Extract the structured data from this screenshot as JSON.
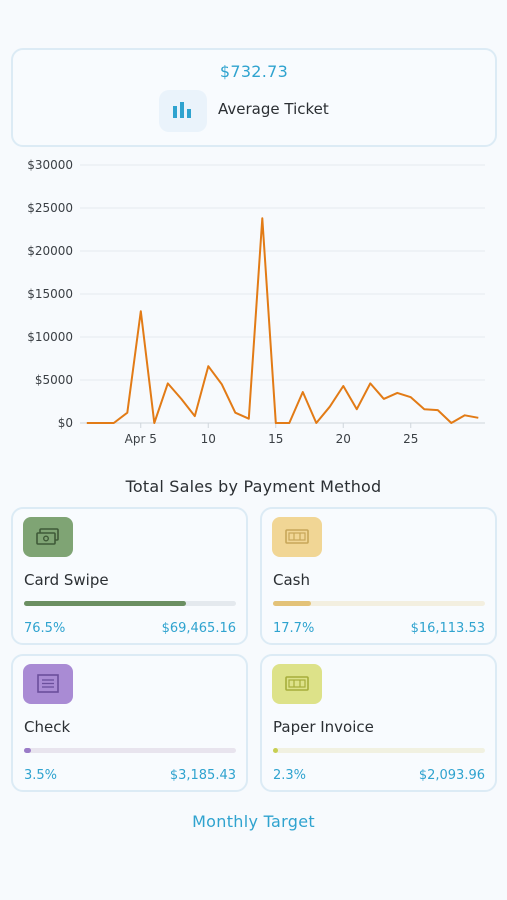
{
  "average_ticket": {
    "value": "$732.73",
    "label": "Average Ticket",
    "icon": "bar-chart-icon"
  },
  "chart_data": {
    "type": "line",
    "x": [
      1,
      2,
      3,
      4,
      5,
      6,
      7,
      8,
      9,
      10,
      11,
      12,
      13,
      14,
      15,
      16,
      17,
      18,
      19,
      20,
      21,
      22,
      23,
      24,
      25,
      26,
      27,
      28,
      29,
      30
    ],
    "series": [
      {
        "color": "#e27b16",
        "values": [
          0,
          0,
          0,
          1200,
          13000,
          0,
          4600,
          2800,
          800,
          6600,
          4500,
          1200,
          500,
          23800,
          0,
          0,
          3600,
          0,
          1900,
          4300,
          1600,
          4600,
          2800,
          3500,
          3000,
          1600,
          1500,
          0,
          900,
          600
        ]
      }
    ],
    "y_ticks": [
      "$0",
      "$5000",
      "$10000",
      "$15000",
      "$20000",
      "$25000",
      "$30000"
    ],
    "y_tick_values": [
      0,
      5000,
      10000,
      15000,
      20000,
      25000,
      30000
    ],
    "x_ticks": [
      "Apr 5",
      "10",
      "15",
      "20",
      "25"
    ],
    "x_tick_values": [
      5,
      10,
      15,
      20,
      25
    ],
    "xlim": [
      0.5,
      30.5
    ],
    "ylim": [
      0,
      30000
    ],
    "grid": "horizontal",
    "xlabel": "",
    "ylabel": ""
  },
  "payment_section": {
    "title": "Total Sales by Payment Method",
    "methods": [
      {
        "name": "Card Swipe",
        "percent_label": "76.5%",
        "amount": "$69,465.16",
        "fraction": 0.765,
        "icon": "cash-bills-icon",
        "color": "#6b8f62",
        "bg": "#7fa474",
        "track": "#e4e9ee"
      },
      {
        "name": "Cash",
        "percent_label": "17.7%",
        "amount": "$16,113.53",
        "fraction": 0.177,
        "icon": "banknote-icon",
        "color": "#e3c278",
        "bg": "#f1d695",
        "track": "#f3efe0"
      },
      {
        "name": "Check",
        "percent_label": "3.5%",
        "amount": "$3,185.43",
        "fraction": 0.035,
        "icon": "check-document-icon",
        "color": "#9a7bc8",
        "bg": "#a98bd4",
        "track": "#e8e4ee"
      },
      {
        "name": "Paper Invoice",
        "percent_label": "2.3%",
        "amount": "$2,093.96",
        "fraction": 0.023,
        "icon": "banknote-icon",
        "color": "#c7cf52",
        "bg": "#dde289",
        "track": "#f1f1e1"
      }
    ]
  },
  "monthly_target": {
    "label": "Monthly Target"
  }
}
